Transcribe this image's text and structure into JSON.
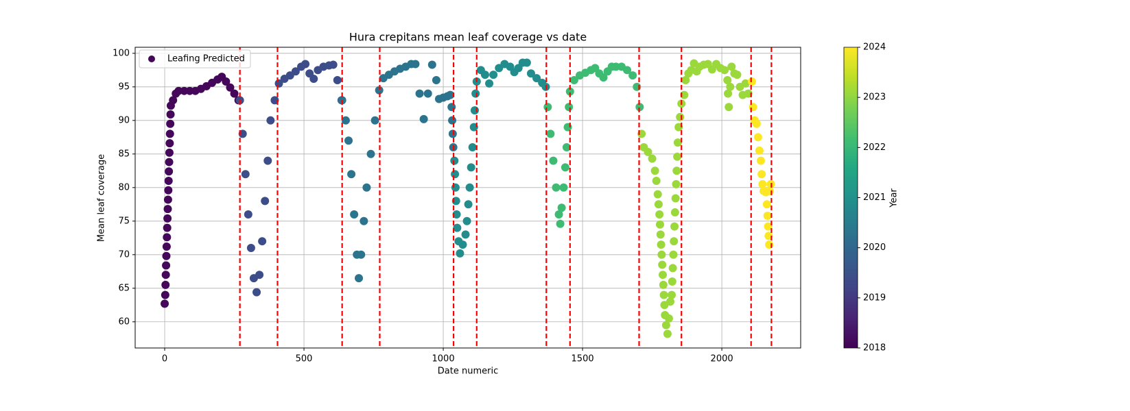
{
  "chart_data": {
    "type": "scatter",
    "title": "Hura crepitans mean leaf coverage vs date",
    "xlabel": "Date numeric",
    "ylabel": "Mean leaf coverage",
    "xlim": [
      -106,
      2283
    ],
    "ylim": [
      56.1,
      100.9
    ],
    "xticks": [
      0,
      500,
      1000,
      1500,
      2000
    ],
    "yticks": [
      60,
      65,
      70,
      75,
      80,
      85,
      90,
      95,
      100
    ],
    "grid": true,
    "legend_loc": "upper left",
    "cmap": "viridis",
    "vlines": [
      270,
      405,
      637,
      772,
      1037,
      1120,
      1370,
      1455,
      1703,
      1855,
      2105,
      2178
    ],
    "vline_color": "#ff0000",
    "colorbar": {
      "label": "Year",
      "clim": [
        2018,
        2024
      ],
      "ticks": [
        2018,
        2019,
        2020,
        2021,
        2022,
        2023,
        2024
      ]
    },
    "series": [
      {
        "name": "Leafing Predicted",
        "groups": [
          {
            "c": 2018.1,
            "x": [
              0,
              2,
              3,
              4,
              5,
              6,
              7,
              8,
              9,
              10,
              11,
              12,
              13,
              14,
              15,
              16,
              17,
              18,
              19,
              20,
              21,
              22,
              30,
              40,
              50,
              70,
              90,
              110,
              130,
              150,
              170,
              190,
              205,
              220,
              235,
              250,
              265
            ],
            "y": [
              62.7,
              64,
              65.5,
              67,
              68.4,
              69.8,
              71.2,
              72.6,
              74,
              75.4,
              76.8,
              78.2,
              79.6,
              81,
              82.4,
              83.8,
              85.2,
              86.6,
              88,
              89.5,
              90.9,
              92.2,
              93,
              94,
              94.4,
              94.4,
              94.4,
              94.4,
              94.7,
              95.1,
              95.6,
              96.1,
              96.5,
              95.8,
              94.9,
              94,
              93
            ]
          },
          {
            "c": 2019.4,
            "x": [
              270,
              280,
              290,
              300,
              310,
              320,
              330,
              340,
              350,
              360,
              370,
              380,
              395,
              410,
              430,
              450,
              470,
              490,
              505,
              520,
              535,
              550,
              570,
              590,
              605,
              620,
              635
            ],
            "y": [
              93,
              88,
              82,
              76,
              71,
              66.5,
              64.4,
              67,
              72,
              78,
              84,
              90,
              93,
              95.5,
              96.2,
              96.7,
              97.3,
              98,
              98.4,
              97,
              96.2,
              97.5,
              98,
              98.2,
              98.3,
              96,
              93
            ]
          },
          {
            "c": 2020.3,
            "x": [
              637,
              650,
              660,
              670,
              680,
              690,
              697,
              705,
              715,
              725,
              740,
              755,
              770,
              785,
              805,
              825,
              845,
              865,
              885,
              900,
              915,
              930,
              945,
              960,
              975,
              985,
              1000,
              1015,
              1025,
              1030,
              1032,
              1034,
              1036
            ],
            "y": [
              93,
              90,
              87,
              82,
              76,
              70,
              66.5,
              70,
              75,
              80,
              85,
              90,
              94.5,
              96.3,
              96.8,
              97.3,
              97.7,
              98,
              98.4,
              98.4,
              94,
              90.2,
              94,
              98.3,
              96,
              93.2,
              93.4,
              93.6,
              93.8,
              92,
              90,
              88,
              86
            ]
          },
          {
            "c": 2020.9,
            "x": [
              1040,
              1042,
              1044,
              1046,
              1048,
              1050,
              1055,
              1060,
              1070,
              1080,
              1085,
              1090,
              1095,
              1100,
              1105,
              1110,
              1113,
              1116,
              1120,
              1135,
              1150,
              1165,
              1180,
              1200,
              1220,
              1240,
              1255,
              1270,
              1285,
              1300,
              1315,
              1335,
              1355,
              1368
            ],
            "y": [
              84,
              82,
              80,
              78,
              76,
              74,
              72,
              70.2,
              71.5,
              73,
              75,
              77.5,
              80,
              83,
              86,
              89,
              91.5,
              94,
              95.8,
              97.5,
              96.8,
              95.5,
              96.8,
              97.8,
              98.4,
              98,
              97.2,
              97.8,
              98.6,
              98.6,
              97,
              96.3,
              95.6,
              95
            ]
          },
          {
            "c": 2022.1,
            "x": [
              1375,
              1385,
              1395,
              1405,
              1415,
              1420,
              1425,
              1432,
              1438,
              1443,
              1447,
              1451,
              1455,
              1470,
              1490,
              1510,
              1530,
              1545,
              1560,
              1575,
              1590,
              1605,
              1620,
              1640,
              1660,
              1680,
              1695,
              1705
            ],
            "y": [
              92,
              88,
              84,
              80,
              76,
              74.6,
              77,
              80,
              83,
              86,
              89,
              92,
              94.3,
              96,
              96.7,
              97.1,
              97.5,
              97.8,
              97,
              96.4,
              97.3,
              98,
              98,
              98,
              97.5,
              96.7,
              95,
              92
            ]
          },
          {
            "c": 2023.1,
            "x": [
              1712,
              1720,
              1735,
              1750,
              1760,
              1765,
              1770,
              1773,
              1776,
              1778,
              1780,
              1782,
              1784,
              1786,
              1788,
              1790,
              1792,
              1794,
              1796,
              1800,
              1805,
              1810,
              1815,
              1820,
              1822,
              1824,
              1826,
              1828,
              1830,
              1832,
              1834,
              1836,
              1838,
              1840,
              1842,
              1845,
              1850,
              1855,
              1865,
              1870,
              1880,
              1890,
              1900,
              1910,
              1920,
              1935,
              1950,
              1965,
              1980,
              1995,
              2010,
              2020,
              2022,
              2025,
              2030,
              2035,
              2045,
              2055,
              2065,
              2075,
              2085,
              2095
            ],
            "y": [
              88,
              86,
              85.3,
              84.3,
              82.5,
              81,
              79,
              77.5,
              76,
              74.5,
              73,
              71.5,
              70,
              68.5,
              67,
              65.5,
              64,
              62.5,
              61,
              59.5,
              58.2,
              60.5,
              63,
              64,
              66,
              68,
              70,
              72,
              74.2,
              76.3,
              78.4,
              80.5,
              82.5,
              84.6,
              86.7,
              89,
              90.5,
              92.5,
              93.8,
              96,
              97,
              97.5,
              98.5,
              97.3,
              98,
              98.3,
              98.4,
              97.6,
              98.4,
              97.8,
              97.5,
              96,
              94,
              92,
              95,
              98,
              97,
              96.8,
              95,
              93.8,
              95.5,
              94
            ]
          },
          {
            "c": 2024,
            "x": [
              2108,
              2112,
              2118,
              2125,
              2130,
              2135,
              2140,
              2143,
              2146,
              2150,
              2158,
              2162,
              2164,
              2166,
              2168,
              2170,
              2172,
              2176
            ],
            "y": [
              95.8,
              92,
              90,
              89.5,
              87.5,
              85.5,
              84,
              82,
              80.5,
              79.5,
              79.3,
              77.5,
              75.8,
              74.2,
              72.8,
              71.5,
              79.5,
              80.5
            ]
          }
        ]
      }
    ]
  }
}
